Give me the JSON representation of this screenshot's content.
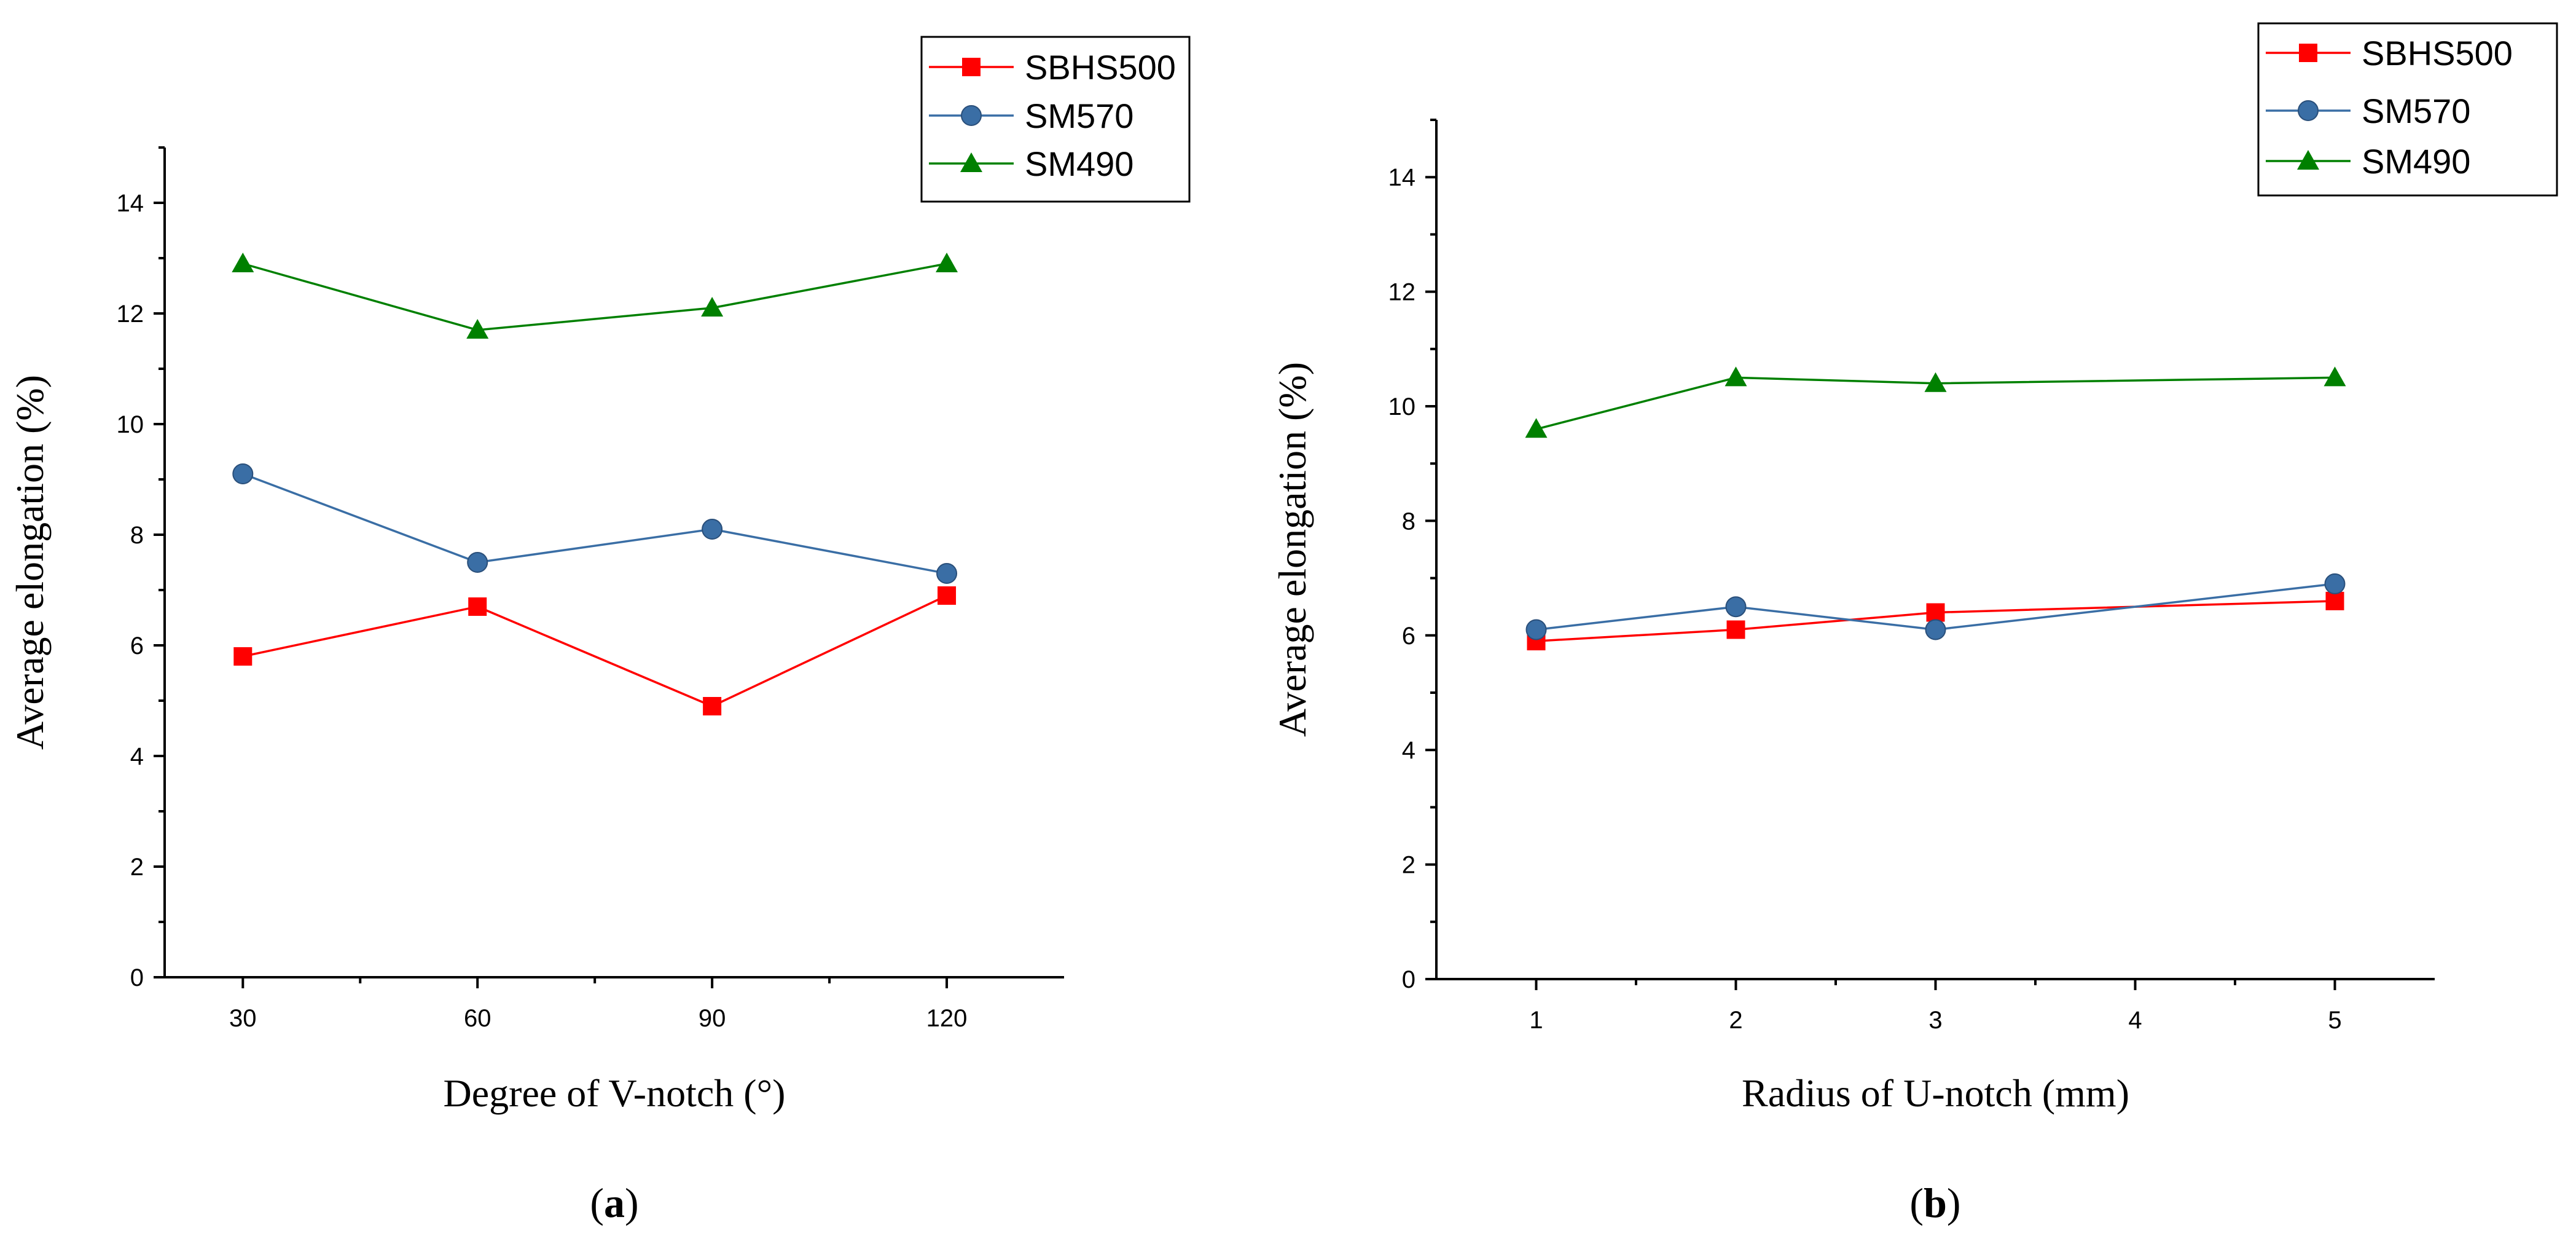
{
  "chart_data": [
    {
      "type": "line",
      "panel_label": "(a)",
      "panel_letter": "a",
      "xlabel": "Degree of V-notch (°)",
      "ylabel": "Average elongation (%)",
      "x": [
        30,
        60,
        90,
        120
      ],
      "xlim": [
        20,
        135
      ],
      "ylim": [
        0,
        15
      ],
      "xticks": [
        30,
        60,
        90,
        120
      ],
      "xminor": [
        45,
        75,
        105
      ],
      "yticks": [
        0,
        2,
        4,
        6,
        8,
        10,
        12,
        14
      ],
      "yminor": [
        1,
        3,
        5,
        7,
        9,
        11,
        13,
        15
      ],
      "legend_position": "top-right",
      "series": [
        {
          "name": "SBHS500",
          "color": "#ff0000",
          "marker": "square",
          "values": [
            5.8,
            6.7,
            4.9,
            6.9
          ]
        },
        {
          "name": "SM570",
          "color": "#3a6ea5",
          "marker": "circle",
          "values": [
            9.1,
            7.5,
            8.1,
            7.3
          ]
        },
        {
          "name": "SM490",
          "color": "#008000",
          "marker": "triangle",
          "values": [
            12.9,
            11.7,
            12.1,
            12.9
          ]
        }
      ]
    },
    {
      "type": "line",
      "panel_label": "(b)",
      "panel_letter": "b",
      "xlabel": "Radius of U-notch (mm)",
      "ylabel": "Average elongation (%)",
      "x": [
        1,
        2,
        3,
        5
      ],
      "xlim": [
        0.5,
        5.5
      ],
      "ylim": [
        0,
        15
      ],
      "xticks": [
        1,
        2,
        3,
        4,
        5
      ],
      "xminor": [
        1.5,
        2.5,
        3.5,
        4.5
      ],
      "yticks": [
        0,
        2,
        4,
        6,
        8,
        10,
        12,
        14
      ],
      "yminor": [
        1,
        3,
        5,
        7,
        9,
        11,
        13,
        15
      ],
      "legend_position": "top-right",
      "series": [
        {
          "name": "SBHS500",
          "color": "#ff0000",
          "marker": "square",
          "values": [
            5.9,
            6.1,
            6.4,
            6.6
          ]
        },
        {
          "name": "SM570",
          "color": "#3a6ea5",
          "marker": "circle",
          "values": [
            6.1,
            6.5,
            6.1,
            6.9
          ]
        },
        {
          "name": "SM490",
          "color": "#008000",
          "marker": "triangle",
          "values": [
            9.6,
            10.5,
            10.4,
            10.5
          ]
        }
      ]
    }
  ]
}
